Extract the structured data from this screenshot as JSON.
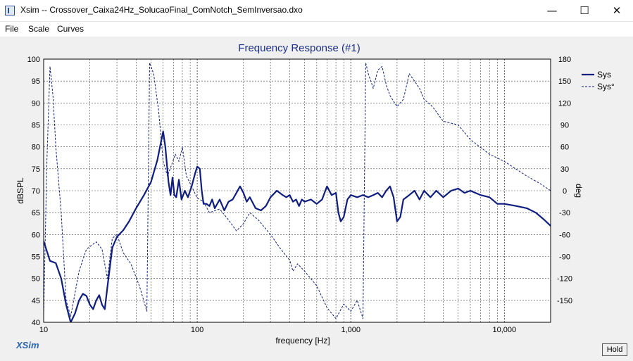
{
  "window": {
    "title": "Xsim -- Crossover_Caixa24Hz_SolucaoFinal_ComNotch_SemInversao.dxo",
    "minimize": "—",
    "maximize": "☐",
    "close": "✕"
  },
  "menu": {
    "file": "File",
    "scale": "Scale",
    "curves": "Curves"
  },
  "brand": "XSim",
  "hold_label": "Hold",
  "chart_data": {
    "type": "line",
    "title": "Frequency Response (#1)",
    "xlabel": "frequency [Hz]",
    "ylabel": "dBSPL",
    "y2label": "deg",
    "xscale": "log",
    "xlim": [
      10,
      20000
    ],
    "ylim": [
      40,
      100
    ],
    "y2lim": [
      -180,
      180
    ],
    "grid": true,
    "legend_position": "top-right",
    "x_ticks": [
      10,
      100,
      1000,
      10000
    ],
    "x_tick_labels": [
      "10",
      "100",
      "1,000",
      "10,000"
    ],
    "y_ticks": [
      100,
      95,
      90,
      85,
      80,
      75,
      70,
      65,
      60,
      55,
      50,
      45,
      40
    ],
    "y2_ticks": [
      180,
      150,
      120,
      90,
      60,
      30,
      0,
      -30,
      -60,
      -90,
      -120,
      -150
    ],
    "colors": {
      "series": "#0f1e80",
      "title": "#1c2f8c",
      "grid": "#404040",
      "background": "#ffffff"
    },
    "series": [
      {
        "name": "Sys",
        "style": "solid",
        "axis": "left",
        "points": [
          [
            10,
            58.5
          ],
          [
            11,
            54
          ],
          [
            12,
            53.5
          ],
          [
            13,
            50
          ],
          [
            14,
            44
          ],
          [
            15,
            40
          ],
          [
            16,
            42
          ],
          [
            17,
            45
          ],
          [
            18,
            46.5
          ],
          [
            19,
            46
          ],
          [
            20,
            44
          ],
          [
            21,
            43
          ],
          [
            22,
            45
          ],
          [
            23,
            46.2
          ],
          [
            24,
            44
          ],
          [
            25,
            43
          ],
          [
            26,
            48
          ],
          [
            28,
            57
          ],
          [
            30,
            59.5
          ],
          [
            33,
            61
          ],
          [
            36,
            63
          ],
          [
            40,
            66
          ],
          [
            45,
            69
          ],
          [
            50,
            72
          ],
          [
            55,
            77
          ],
          [
            58,
            81
          ],
          [
            60,
            83.5
          ],
          [
            62,
            80
          ],
          [
            65,
            72
          ],
          [
            67,
            69
          ],
          [
            69,
            73
          ],
          [
            71,
            69
          ],
          [
            73,
            68.5
          ],
          [
            76,
            72.5
          ],
          [
            79,
            68
          ],
          [
            83,
            70
          ],
          [
            87,
            68.5
          ],
          [
            92,
            71
          ],
          [
            97,
            74
          ],
          [
            100,
            75.5
          ],
          [
            104,
            75
          ],
          [
            107,
            70
          ],
          [
            110,
            67
          ],
          [
            115,
            67
          ],
          [
            120,
            66.5
          ],
          [
            125,
            68
          ],
          [
            130,
            66
          ],
          [
            140,
            68
          ],
          [
            150,
            65.5
          ],
          [
            160,
            67.5
          ],
          [
            170,
            68
          ],
          [
            180,
            69.5
          ],
          [
            190,
            71
          ],
          [
            200,
            69.5
          ],
          [
            210,
            67.5
          ],
          [
            220,
            68.5
          ],
          [
            240,
            66
          ],
          [
            260,
            65.5
          ],
          [
            280,
            66.5
          ],
          [
            300,
            68.5
          ],
          [
            330,
            70
          ],
          [
            360,
            69
          ],
          [
            380,
            68.5
          ],
          [
            400,
            69
          ],
          [
            420,
            67.5
          ],
          [
            440,
            68
          ],
          [
            460,
            66.5
          ],
          [
            480,
            68
          ],
          [
            500,
            67.5
          ],
          [
            550,
            68
          ],
          [
            600,
            67
          ],
          [
            650,
            68
          ],
          [
            700,
            71
          ],
          [
            750,
            69
          ],
          [
            800,
            69.5
          ],
          [
            830,
            65
          ],
          [
            860,
            63
          ],
          [
            900,
            64
          ],
          [
            950,
            68
          ],
          [
            1000,
            69
          ],
          [
            1100,
            68.5
          ],
          [
            1200,
            69
          ],
          [
            1300,
            68.5
          ],
          [
            1400,
            69
          ],
          [
            1500,
            69.5
          ],
          [
            1600,
            68.5
          ],
          [
            1700,
            70
          ],
          [
            1800,
            71
          ],
          [
            1900,
            68.5
          ],
          [
            2000,
            63
          ],
          [
            2100,
            64
          ],
          [
            2200,
            68
          ],
          [
            2400,
            69
          ],
          [
            2600,
            70
          ],
          [
            2800,
            68
          ],
          [
            3000,
            70
          ],
          [
            3300,
            68.5
          ],
          [
            3600,
            70
          ],
          [
            4000,
            68.5
          ],
          [
            4500,
            70
          ],
          [
            5000,
            70.5
          ],
          [
            5500,
            69.5
          ],
          [
            6000,
            70
          ],
          [
            7000,
            69
          ],
          [
            8000,
            68.5
          ],
          [
            9000,
            67
          ],
          [
            10000,
            67
          ],
          [
            12000,
            66.5
          ],
          [
            14000,
            66
          ],
          [
            16000,
            65
          ],
          [
            18000,
            63.5
          ],
          [
            20000,
            62
          ]
        ]
      },
      {
        "name": "Sys°",
        "style": "dashed",
        "axis": "right",
        "points": [
          [
            10,
            -170
          ],
          [
            10.5,
            40
          ],
          [
            11,
            170
          ],
          [
            11.5,
            130
          ],
          [
            12,
            60
          ],
          [
            13,
            -30
          ],
          [
            14,
            -150
          ],
          [
            15,
            -172
          ],
          [
            17,
            -110
          ],
          [
            19,
            -80
          ],
          [
            22,
            -70
          ],
          [
            24,
            -80
          ],
          [
            26,
            -120
          ],
          [
            28,
            -65
          ],
          [
            30,
            -60
          ],
          [
            33,
            -85
          ],
          [
            37,
            -100
          ],
          [
            42,
            -130
          ],
          [
            47,
            -165
          ],
          [
            49,
            175
          ],
          [
            52,
            160
          ],
          [
            56,
            110
          ],
          [
            60,
            40
          ],
          [
            64,
            20
          ],
          [
            68,
            35
          ],
          [
            72,
            50
          ],
          [
            76,
            40
          ],
          [
            80,
            60
          ],
          [
            85,
            20
          ],
          [
            90,
            10
          ],
          [
            100,
            -10
          ],
          [
            110,
            -15
          ],
          [
            120,
            -30
          ],
          [
            140,
            -25
          ],
          [
            160,
            -40
          ],
          [
            180,
            -55
          ],
          [
            200,
            -45
          ],
          [
            220,
            -30
          ],
          [
            250,
            -40
          ],
          [
            300,
            -60
          ],
          [
            350,
            -80
          ],
          [
            400,
            -95
          ],
          [
            420,
            -110
          ],
          [
            450,
            -100
          ],
          [
            500,
            -110
          ],
          [
            600,
            -130
          ],
          [
            700,
            -160
          ],
          [
            800,
            -175
          ],
          [
            900,
            -155
          ],
          [
            1000,
            -165
          ],
          [
            1100,
            -150
          ],
          [
            1200,
            -175
          ],
          [
            1250,
            175
          ],
          [
            1300,
            160
          ],
          [
            1400,
            140
          ],
          [
            1500,
            165
          ],
          [
            1600,
            170
          ],
          [
            1700,
            145
          ],
          [
            1800,
            130
          ],
          [
            2000,
            115
          ],
          [
            2200,
            125
          ],
          [
            2400,
            160
          ],
          [
            2600,
            150
          ],
          [
            2800,
            140
          ],
          [
            3000,
            125
          ],
          [
            3400,
            115
          ],
          [
            4000,
            95
          ],
          [
            5000,
            90
          ],
          [
            6000,
            70
          ],
          [
            8000,
            50
          ],
          [
            10000,
            40
          ],
          [
            14000,
            20
          ],
          [
            17000,
            10
          ],
          [
            20000,
            0
          ]
        ]
      }
    ]
  }
}
